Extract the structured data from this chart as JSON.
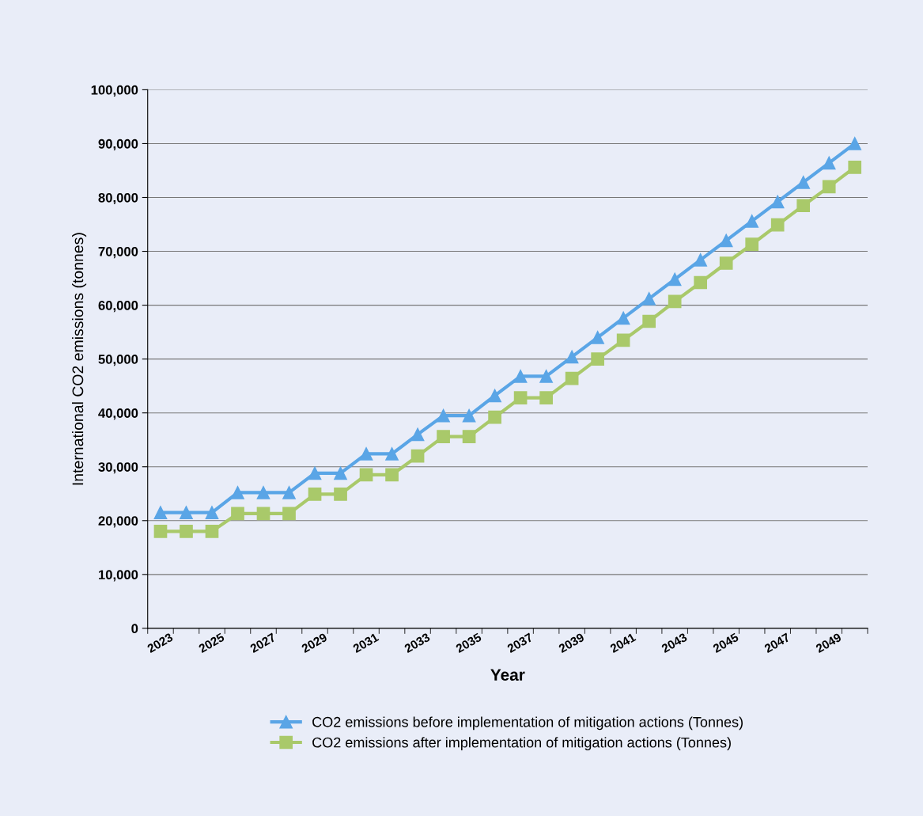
{
  "chart_data": {
    "type": "line",
    "xlabel": "Year",
    "ylabel": "International CO2 emissions (tonnes)",
    "categories": [
      "2023",
      null,
      "2025",
      null,
      "2027",
      null,
      "2029",
      null,
      "2031",
      null,
      "2033",
      null,
      "2035",
      null,
      "2037",
      null,
      "2039",
      null,
      "2041",
      null,
      "2043",
      null,
      "2045",
      null,
      "2047",
      null,
      "2049",
      null
    ],
    "series": [
      {
        "name": "CO2 emissions before implementation of mitigation actions (Tonnes)",
        "color": "#5aa5e6",
        "marker": "triangle",
        "values": [
          21500,
          21500,
          21500,
          25200,
          25200,
          25200,
          28800,
          28800,
          32400,
          32400,
          36000,
          39500,
          39500,
          43200,
          46800,
          46800,
          50400,
          54000,
          57600,
          61200,
          64800,
          68400,
          72000,
          75600,
          79200,
          82800,
          86400,
          90000
        ]
      },
      {
        "name": "CO2 emissions after implementation of mitigation actions (Tonnes)",
        "color": "#a9c96a",
        "marker": "square",
        "values": [
          18000,
          18000,
          18000,
          21300,
          21300,
          21300,
          24900,
          24900,
          28500,
          28500,
          32000,
          35600,
          35600,
          39200,
          42800,
          42800,
          46400,
          50000,
          53500,
          57000,
          60700,
          64200,
          67800,
          71300,
          74900,
          78500,
          82000,
          85600
        ]
      }
    ],
    "ylim": [
      0,
      100000
    ],
    "yticks": [
      {
        "value": 0,
        "label": "0"
      },
      {
        "value": 10000,
        "label": "10,000"
      },
      {
        "value": 20000,
        "label": "20,000"
      },
      {
        "value": 30000,
        "label": "30,000"
      },
      {
        "value": 40000,
        "label": "40,000"
      },
      {
        "value": 50000,
        "label": "50,000"
      },
      {
        "value": 60000,
        "label": "60,000"
      },
      {
        "value": 70000,
        "label": "70,000"
      },
      {
        "value": 80000,
        "label": "80,000"
      },
      {
        "value": 90000,
        "label": "90,000"
      },
      {
        "value": 100000,
        "label": "100,000"
      }
    ],
    "grid": "y",
    "legend": "bottom",
    "line_style": "solid"
  }
}
